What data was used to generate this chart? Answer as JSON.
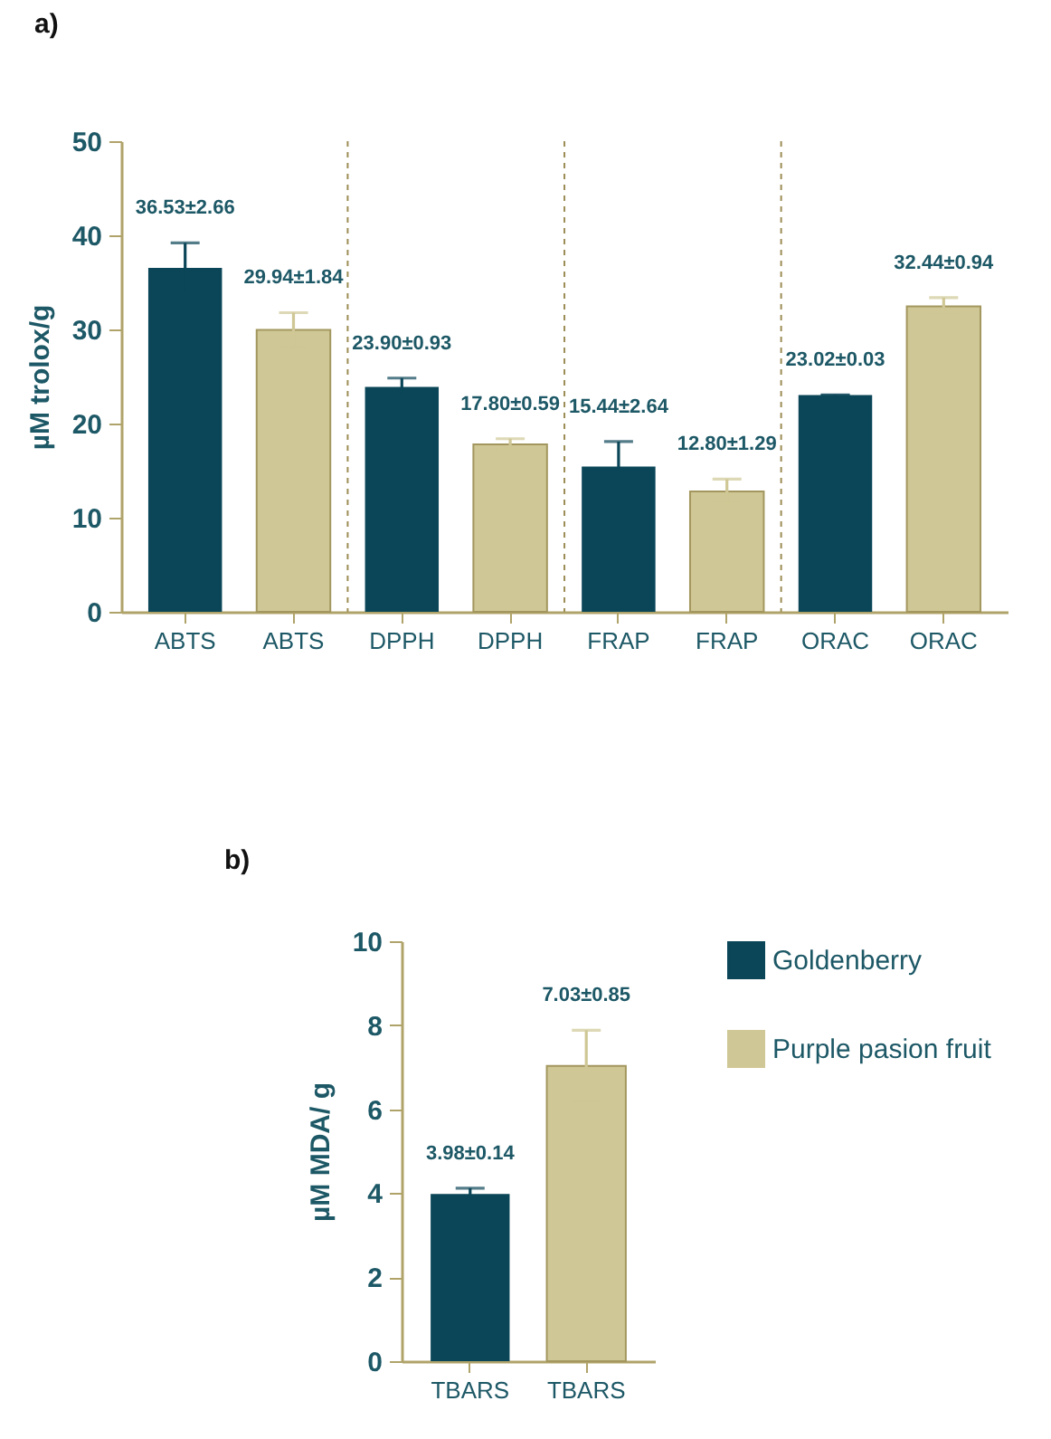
{
  "chart_data": [
    {
      "type": "bar",
      "title": "a)",
      "ylabel": "µM trolox/g",
      "categories": [
        "ABTS",
        "ABTS",
        "DPPH",
        "DPPH",
        "FRAP",
        "FRAP",
        "ORAC",
        "ORAC"
      ],
      "ylim": [
        0,
        50
      ],
      "yticks": [
        0,
        10,
        20,
        30,
        40,
        50
      ],
      "grid": false,
      "legend": false,
      "series": [
        {
          "color": "#0b4658",
          "values": [
            36.53,
            null,
            23.9,
            null,
            15.44,
            null,
            23.02,
            null
          ],
          "errors": [
            2.66,
            null,
            0.93,
            null,
            2.64,
            null,
            0.03,
            null
          ],
          "value_labels": [
            "36.53±2.66",
            null,
            "23.90±0.93",
            null,
            "15.44±2.64",
            null,
            "23.02±0.03",
            null
          ]
        },
        {
          "color": "#cfc795",
          "values": [
            null,
            29.94,
            null,
            17.8,
            null,
            12.8,
            null,
            32.44
          ],
          "errors": [
            null,
            1.84,
            null,
            0.59,
            null,
            1.29,
            null,
            0.94
          ],
          "value_labels": [
            null,
            "29.94±1.84",
            null,
            "17.80±0.59",
            null,
            "12.80±1.29",
            null,
            "32.44±0.94"
          ]
        }
      ]
    },
    {
      "type": "bar",
      "title": "b)",
      "ylabel": "µM MDA/ g",
      "categories": [
        "TBARS",
        "TBARS"
      ],
      "ylim": [
        0,
        10
      ],
      "yticks": [
        0,
        2,
        4,
        6,
        8,
        10
      ],
      "grid": false,
      "legend": "right",
      "series": [
        {
          "name": "Goldenberry",
          "color": "#0b4658",
          "values": [
            3.98,
            null
          ],
          "errors": [
            0.14,
            null
          ],
          "value_labels": [
            "3.98±0.14",
            null
          ]
        },
        {
          "name": "Purple pasion fruit",
          "color": "#cfc795",
          "values": [
            null,
            7.03
          ],
          "errors": [
            null,
            0.85
          ],
          "value_labels": [
            null,
            "7.03±0.85"
          ]
        }
      ]
    }
  ]
}
